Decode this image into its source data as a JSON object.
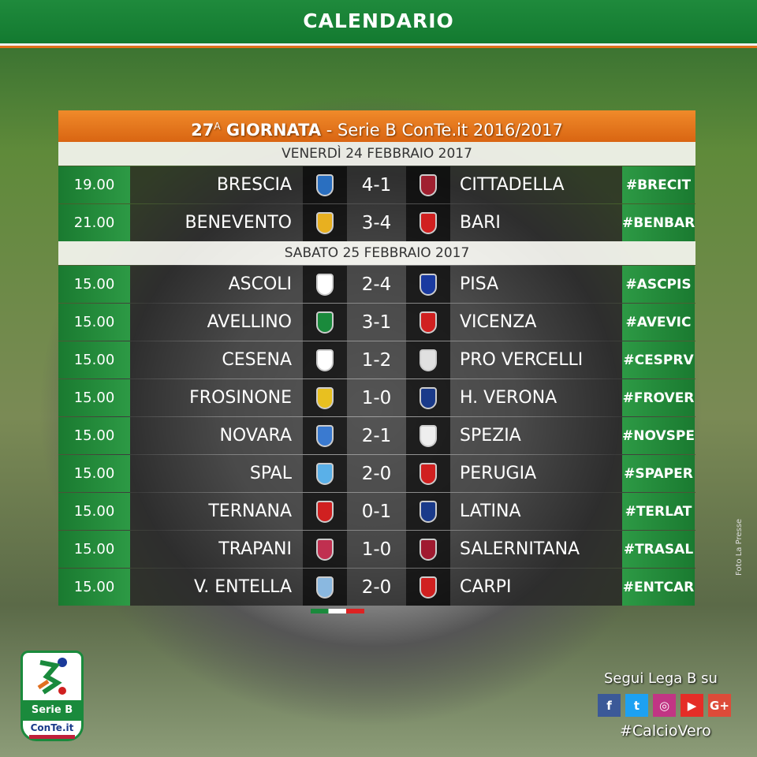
{
  "banner": {
    "title": "CALENDARIO"
  },
  "header": {
    "round": "27",
    "round_sup": "A",
    "round_label": " GIORNATA",
    "subtitle": " - Serie B ConTe.it 2016/2017"
  },
  "days": [
    {
      "date": "VENERDÌ 24 FEBBRAIO 2017",
      "matches": [
        {
          "time": "19.00",
          "home": "BRESCIA",
          "score": "4-1",
          "away": "CITTADELLA",
          "tag": "#BRECIT",
          "home_color": "#2a6fc0",
          "away_color": "#a02030"
        },
        {
          "time": "21.00",
          "home": "BENEVENTO",
          "score": "3-4",
          "away": "BARI",
          "tag": "#BENBAR",
          "home_color": "#e8b020",
          "away_color": "#d02020"
        }
      ]
    },
    {
      "date": "SABATO 25 FEBBRAIO 2017",
      "matches": [
        {
          "time": "15.00",
          "home": "ASCOLI",
          "score": "2-4",
          "away": "PISA",
          "tag": "#ASCPIS",
          "home_color": "#ffffff",
          "away_color": "#1a3aa0"
        },
        {
          "time": "15.00",
          "home": "AVELLINO",
          "score": "3-1",
          "away": "VICENZA",
          "tag": "#AVEVIC",
          "home_color": "#1a8a3c",
          "away_color": "#d02020"
        },
        {
          "time": "15.00",
          "home": "CESENA",
          "score": "1-2",
          "away": "PRO VERCELLI",
          "tag": "#CESPRV",
          "home_color": "#ffffff",
          "away_color": "#e0e0e0"
        },
        {
          "time": "15.00",
          "home": "FROSINONE",
          "score": "1-0",
          "away": "H. VERONA",
          "tag": "#FROVER",
          "home_color": "#e8c020",
          "away_color": "#1a3a8a"
        },
        {
          "time": "15.00",
          "home": "NOVARA",
          "score": "2-1",
          "away": "SPEZIA",
          "tag": "#NOVSPE",
          "home_color": "#3a7ad0",
          "away_color": "#eeeeee"
        },
        {
          "time": "15.00",
          "home": "SPAL",
          "score": "2-0",
          "away": "PERUGIA",
          "tag": "#SPAPER",
          "home_color": "#5ab0e8",
          "away_color": "#d02020"
        },
        {
          "time": "15.00",
          "home": "TERNANA",
          "score": "0-1",
          "away": "LATINA",
          "tag": "#TERLAT",
          "home_color": "#d02020",
          "away_color": "#1a3a8a"
        },
        {
          "time": "15.00",
          "home": "TRAPANI",
          "score": "1-0",
          "away": "SALERNITANA",
          "tag": "#TRASAL",
          "home_color": "#c03050",
          "away_color": "#a01a30"
        },
        {
          "time": "15.00",
          "home": "V. ENTELLA",
          "score": "2-0",
          "away": "CARPI",
          "tag": "#ENTCAR",
          "home_color": "#8ab8e0",
          "away_color": "#d02020"
        }
      ]
    }
  ],
  "logo": {
    "league": "Serie B",
    "sponsor": "ConTe.it"
  },
  "social": {
    "follow": "Segui Lega B su",
    "hashtag": "#CalcioVero",
    "icons": [
      {
        "name": "facebook-icon",
        "glyph": "f",
        "color": "#3b5998"
      },
      {
        "name": "twitter-icon",
        "glyph": "t",
        "color": "#1da1f2"
      },
      {
        "name": "instagram-icon",
        "glyph": "◎",
        "color": "#c13584"
      },
      {
        "name": "youtube-icon",
        "glyph": "▶",
        "color": "#e52d27"
      },
      {
        "name": "google-plus-icon",
        "glyph": "G+",
        "color": "#dd4b39"
      }
    ]
  },
  "credit": "Foto La Presse"
}
